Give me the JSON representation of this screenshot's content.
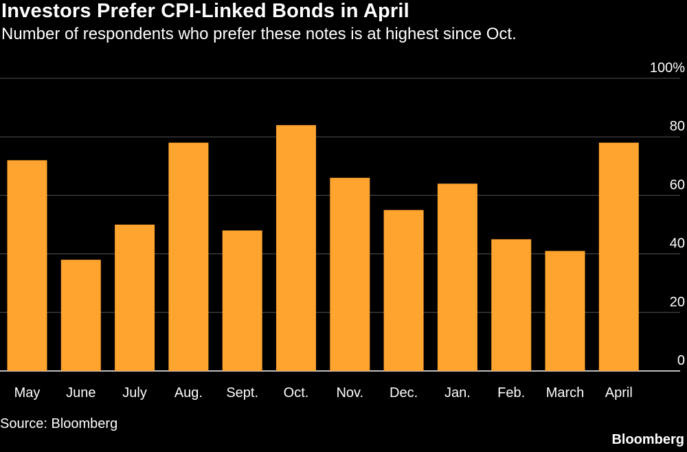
{
  "title": "Investors Prefer CPI-Linked Bonds in April",
  "subtitle": "Number of respondents who prefer these notes is at highest since Oct.",
  "source": "Source: Bloomberg",
  "brand": "Bloomberg",
  "colors": {
    "bar": "#FFA42E",
    "background": "#000000",
    "grid": "#555555",
    "text": "#FFFFFF"
  },
  "chart_data": {
    "type": "bar",
    "categories": [
      "May",
      "June",
      "July",
      "Aug.",
      "Sept.",
      "Oct.",
      "Nov.",
      "Dec.",
      "Jan.",
      "Feb.",
      "March",
      "April"
    ],
    "values": [
      72,
      38,
      50,
      78,
      48,
      84,
      66,
      55,
      64,
      45,
      41,
      78
    ],
    "ylim": [
      0,
      100
    ],
    "yticks": [
      0,
      20,
      40,
      60,
      80,
      100
    ],
    "ytick_labels": [
      "0",
      "20",
      "40",
      "60",
      "80",
      "100%"
    ],
    "grid": true,
    "y_axis_side": "right"
  }
}
